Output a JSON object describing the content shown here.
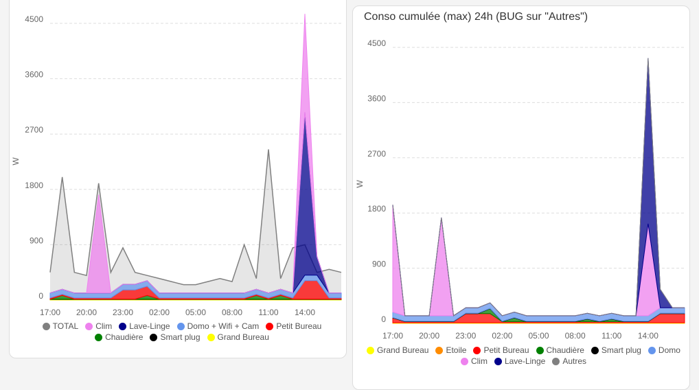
{
  "chart_data": [
    {
      "type": "area",
      "stacked": true,
      "stack_order": "reverse",
      "y_label": "W",
      "categories": [
        "17:00",
        null,
        null,
        "20:00",
        null,
        null,
        "23:00",
        null,
        null,
        "02:00",
        null,
        null,
        "05:00",
        null,
        null,
        "08:00",
        null,
        null,
        "11:00",
        null,
        null,
        "14:00",
        null,
        null,
        null
      ],
      "ylim": [
        0,
        4500
      ],
      "yticks": [
        0,
        900,
        1800,
        2700,
        3600,
        4500
      ],
      "grid": true,
      "series": [
        {
          "name": "TOTAL",
          "color": "#808080",
          "stacked": false,
          "values": [
            450,
            2000,
            450,
            400,
            1900,
            450,
            850,
            450,
            400,
            350,
            300,
            250,
            250,
            300,
            350,
            300,
            900,
            350,
            2450,
            350,
            850,
            900,
            450,
            500,
            450
          ]
        },
        {
          "name": "Clim",
          "color": "#ee82ee",
          "values": [
            0,
            0,
            0,
            0,
            1600,
            0,
            0,
            0,
            0,
            0,
            0,
            0,
            0,
            0,
            0,
            0,
            0,
            0,
            0,
            0,
            0,
            1600,
            0,
            0,
            0
          ]
        },
        {
          "name": "Lave-Linge",
          "color": "#00008b",
          "values": [
            0,
            0,
            0,
            0,
            0,
            0,
            0,
            0,
            0,
            0,
            0,
            0,
            0,
            0,
            0,
            0,
            0,
            0,
            0,
            0,
            0,
            2650,
            300,
            0,
            0
          ]
        },
        {
          "name": "Domo + Wifi + Cam",
          "color": "#6495ed",
          "values": [
            80,
            80,
            80,
            80,
            80,
            80,
            90,
            90,
            90,
            80,
            80,
            80,
            80,
            80,
            80,
            80,
            80,
            80,
            80,
            80,
            80,
            90,
            90,
            80,
            80
          ]
        },
        {
          "name": "Petit Bureau",
          "color": "#ff0000",
          "values": [
            20,
            20,
            20,
            20,
            20,
            20,
            150,
            150,
            150,
            20,
            20,
            20,
            20,
            20,
            20,
            20,
            20,
            20,
            20,
            20,
            20,
            300,
            300,
            20,
            20
          ]
        },
        {
          "name": "Chaudière",
          "color": "#008000",
          "values": [
            0,
            60,
            0,
            0,
            0,
            0,
            0,
            0,
            60,
            0,
            0,
            0,
            0,
            0,
            0,
            0,
            0,
            60,
            0,
            60,
            0,
            0,
            0,
            0,
            0
          ]
        },
        {
          "name": "Smart plug",
          "color": "#000000",
          "values": [
            5,
            5,
            5,
            5,
            5,
            5,
            5,
            5,
            5,
            5,
            5,
            5,
            5,
            5,
            5,
            5,
            5,
            5,
            5,
            5,
            5,
            5,
            5,
            5,
            5
          ]
        },
        {
          "name": "Grand Bureau",
          "color": "#ffff00",
          "values": [
            10,
            10,
            10,
            10,
            10,
            10,
            10,
            10,
            10,
            10,
            10,
            10,
            10,
            10,
            10,
            10,
            10,
            10,
            10,
            10,
            10,
            10,
            10,
            10,
            10
          ]
        }
      ]
    },
    {
      "type": "area",
      "stacked": true,
      "title": "Conso cumulée (max) 24h (BUG sur \"Autres\")",
      "y_label": "W",
      "categories": [
        "17:00",
        null,
        null,
        "20:00",
        null,
        null,
        "23:00",
        null,
        null,
        "02:00",
        null,
        null,
        "05:00",
        null,
        null,
        "08:00",
        null,
        null,
        "11:00",
        null,
        null,
        "14:00",
        null,
        null,
        null
      ],
      "ylim": [
        0,
        4500
      ],
      "yticks": [
        0,
        900,
        1800,
        2700,
        3600,
        4500
      ],
      "grid": true,
      "series": [
        {
          "name": "Grand Bureau",
          "color": "#ffff00",
          "values": [
            10,
            10,
            10,
            10,
            10,
            10,
            10,
            10,
            10,
            10,
            10,
            10,
            10,
            10,
            10,
            10,
            10,
            10,
            10,
            10,
            10,
            10,
            10,
            10,
            10
          ]
        },
        {
          "name": "Etoile",
          "color": "#ff8c00",
          "values": [
            0,
            0,
            0,
            0,
            0,
            0,
            0,
            0,
            0,
            0,
            0,
            0,
            0,
            0,
            0,
            0,
            0,
            0,
            0,
            0,
            0,
            0,
            0,
            0,
            0
          ]
        },
        {
          "name": "Petit Bureau",
          "color": "#ff0000",
          "values": [
            80,
            20,
            20,
            20,
            20,
            20,
            150,
            150,
            150,
            20,
            20,
            20,
            20,
            20,
            20,
            20,
            20,
            20,
            20,
            20,
            20,
            20,
            150,
            150,
            150
          ]
        },
        {
          "name": "Chaudière",
          "color": "#008000",
          "values": [
            0,
            0,
            0,
            0,
            0,
            0,
            0,
            0,
            80,
            0,
            60,
            0,
            0,
            0,
            0,
            0,
            40,
            0,
            40,
            0,
            0,
            0,
            0,
            0,
            0
          ]
        },
        {
          "name": "Smart plug",
          "color": "#000000",
          "values": [
            5,
            5,
            5,
            5,
            5,
            5,
            5,
            5,
            5,
            5,
            5,
            5,
            5,
            5,
            5,
            5,
            5,
            5,
            5,
            5,
            5,
            5,
            5,
            5,
            5
          ]
        },
        {
          "name": "Domo",
          "color": "#6495ed",
          "values": [
            90,
            90,
            90,
            90,
            90,
            90,
            90,
            90,
            90,
            90,
            90,
            90,
            90,
            90,
            90,
            90,
            90,
            90,
            90,
            90,
            90,
            90,
            90,
            90,
            90
          ]
        },
        {
          "name": "Clim",
          "color": "#ee82ee",
          "values": [
            1750,
            0,
            0,
            0,
            1600,
            0,
            0,
            0,
            0,
            0,
            0,
            0,
            0,
            0,
            0,
            0,
            0,
            0,
            0,
            0,
            0,
            1500,
            0,
            0,
            0
          ]
        },
        {
          "name": "Lave-Linge",
          "color": "#00008b",
          "values": [
            0,
            0,
            0,
            0,
            0,
            0,
            0,
            0,
            0,
            0,
            0,
            0,
            0,
            0,
            0,
            0,
            0,
            0,
            0,
            0,
            0,
            2700,
            300,
            0,
            0
          ]
        },
        {
          "name": "Autres",
          "color": "#808080",
          "values": [
            0,
            0,
            0,
            0,
            0,
            0,
            0,
            0,
            0,
            0,
            0,
            0,
            0,
            0,
            0,
            0,
            0,
            0,
            0,
            0,
            0,
            0,
            0,
            0,
            0
          ]
        }
      ]
    }
  ]
}
